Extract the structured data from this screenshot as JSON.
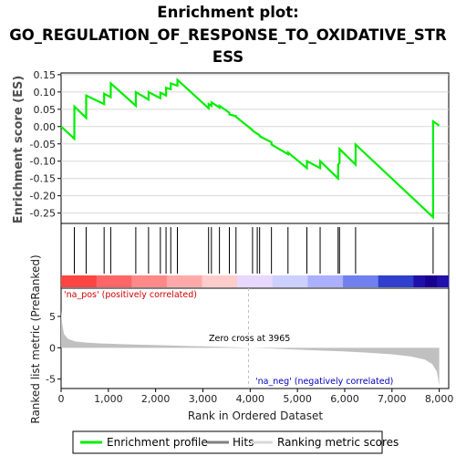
{
  "title_lines": [
    "Enrichment plot:",
    "GO_REGULATION_OF_RESPONSE_TO_OXIDATIVE_STR",
    "ESS"
  ],
  "colors": {
    "enrichment_line": "#00ee00",
    "hits": "#000000",
    "metric_fill": "#c0c0c0",
    "pos_label": "#cc0000",
    "neg_label": "#0000bb",
    "zero_cross": "#c0c0c0"
  },
  "chart_data": [
    {
      "type": "line",
      "panel": "enrichment",
      "ylabel": "Enrichment score (ES)",
      "ylim": [
        -0.28,
        0.155
      ],
      "yticks": [
        -0.25,
        -0.2,
        -0.15,
        -0.1,
        -0.05,
        0.0,
        0.05,
        0.1,
        0.15
      ],
      "ytick_labels": [
        "-0.25",
        "-0.20",
        "-0.15",
        "-0.10",
        "-0.05",
        "0.00",
        "0.05",
        "0.10",
        "0.15"
      ],
      "xlim": [
        0,
        8200
      ],
      "grid": true,
      "series": [
        {
          "name": "Enrichment profile",
          "x": [
            0,
            280,
            281,
            530,
            531,
            910,
            911,
            1050,
            1051,
            1580,
            1581,
            1850,
            1851,
            2100,
            2101,
            2220,
            2221,
            2320,
            2321,
            2460,
            2461,
            3120,
            3121,
            3180,
            3181,
            3350,
            3351,
            3560,
            3561,
            3700,
            3701,
            4050,
            4051,
            4200,
            4201,
            4450,
            4451,
            4800,
            4801,
            5200,
            5201,
            5480,
            5481,
            5860,
            5861,
            5890,
            5891,
            6230,
            6231,
            7870,
            7871,
            8000
          ],
          "y": [
            0.0,
            -0.035,
            0.058,
            0.025,
            0.09,
            0.065,
            0.095,
            0.085,
            0.125,
            0.06,
            0.1,
            0.078,
            0.1,
            0.082,
            0.098,
            0.09,
            0.112,
            0.108,
            0.125,
            0.118,
            0.135,
            0.053,
            0.065,
            0.06,
            0.07,
            0.055,
            0.06,
            0.04,
            0.035,
            0.03,
            0.028,
            -0.01,
            -0.012,
            -0.025,
            -0.028,
            -0.045,
            -0.052,
            -0.08,
            -0.075,
            -0.12,
            -0.1,
            -0.12,
            -0.1,
            -0.15,
            -0.11,
            -0.105,
            -0.065,
            -0.11,
            -0.052,
            -0.262,
            0.015,
            0.003
          ]
        }
      ]
    },
    {
      "type": "hits",
      "panel": "hits",
      "series": [
        {
          "name": "Hits",
          "x": [
            280,
            530,
            910,
            1050,
            1580,
            1850,
            2100,
            2220,
            2320,
            2460,
            3120,
            3180,
            3350,
            3560,
            3700,
            4050,
            4150,
            4200,
            4450,
            4800,
            5200,
            5480,
            5860,
            5890,
            6230,
            7870
          ]
        }
      ],
      "colorbar": [
        "#ff4444",
        "#ff6666",
        "#ff8888",
        "#ffaaaa",
        "#ffcccc",
        "#e8d8ff",
        "#ccd0ff",
        "#aab0ff",
        "#7080ee",
        "#3040cc",
        "#2010aa"
      ]
    },
    {
      "type": "area",
      "panel": "metric",
      "ylabel": "Ranked list metric (PreRanked)",
      "xlabel": "Rank in Ordered Dataset",
      "ylim": [
        -6.5,
        9.5
      ],
      "yticks": [
        -5,
        0,
        5
      ],
      "ytick_labels": [
        "-5",
        "0",
        "5"
      ],
      "xlim": [
        0,
        8200
      ],
      "xticks": [
        0,
        1000,
        2000,
        3000,
        4000,
        5000,
        6000,
        7000,
        8000
      ],
      "xtick_labels": [
        "0",
        "1,000",
        "2,000",
        "3,000",
        "4,000",
        "5,000",
        "6,000",
        "7,000",
        "8,000"
      ],
      "series": [
        {
          "name": "Ranking metric scores",
          "x": [
            0,
            20,
            60,
            150,
            300,
            500,
            800,
            1200,
            1600,
            2000,
            2500,
            3000,
            3500,
            3965,
            4500,
            5000,
            5500,
            6000,
            6500,
            7000,
            7400,
            7700,
            7850,
            7950,
            8000
          ],
          "y": [
            6.0,
            4.0,
            2.2,
            1.4,
            1.0,
            0.85,
            0.7,
            0.6,
            0.5,
            0.42,
            0.32,
            0.22,
            0.12,
            0.0,
            -0.15,
            -0.3,
            -0.45,
            -0.6,
            -0.8,
            -1.05,
            -1.4,
            -1.9,
            -2.6,
            -3.8,
            -6.0
          ]
        }
      ],
      "annotations": {
        "zero_cross": "Zero cross at 3965",
        "zero_cross_x": 3965,
        "pos_label": "'na_pos' (positively correlated)",
        "neg_label": "'na_neg' (negatively correlated)"
      }
    }
  ],
  "legend": {
    "items": [
      "Enrichment profile",
      "Hits",
      "Ranking metric scores"
    ]
  }
}
